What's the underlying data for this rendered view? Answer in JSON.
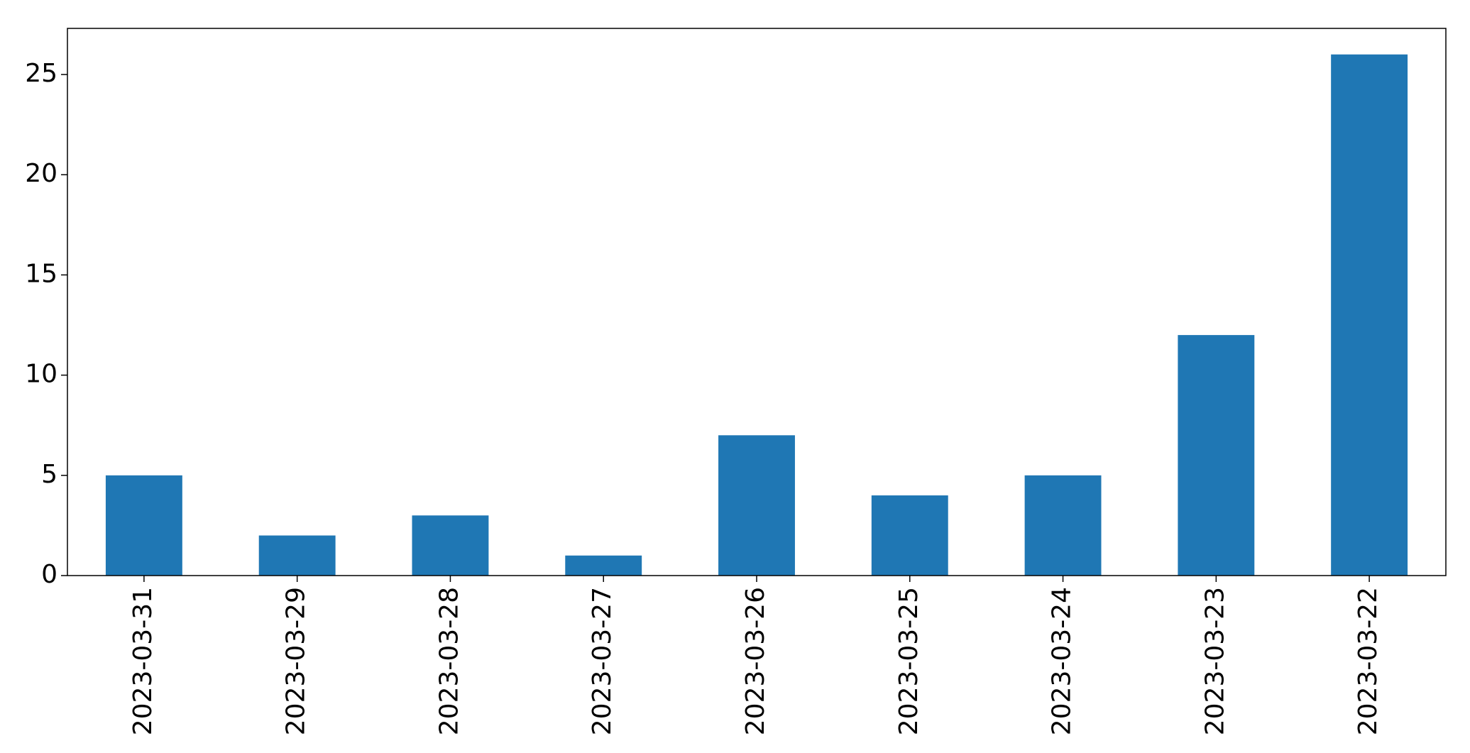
{
  "chart_data": {
    "type": "bar",
    "title": "",
    "xlabel": "",
    "ylabel": "",
    "categories": [
      "2023-03-31",
      "2023-03-29",
      "2023-03-28",
      "2023-03-27",
      "2023-03-26",
      "2023-03-25",
      "2023-03-24",
      "2023-03-23",
      "2023-03-22"
    ],
    "values": [
      5,
      2,
      3,
      1,
      7,
      4,
      5,
      12,
      26
    ],
    "ylim": [
      0,
      27.3
    ],
    "yticks": [
      0,
      5,
      10,
      15,
      20,
      25
    ],
    "x_tick_rotation": "vertical",
    "grid": false,
    "legend": "none",
    "bar_color": "#1f77b4",
    "axis_color": "#000000"
  }
}
